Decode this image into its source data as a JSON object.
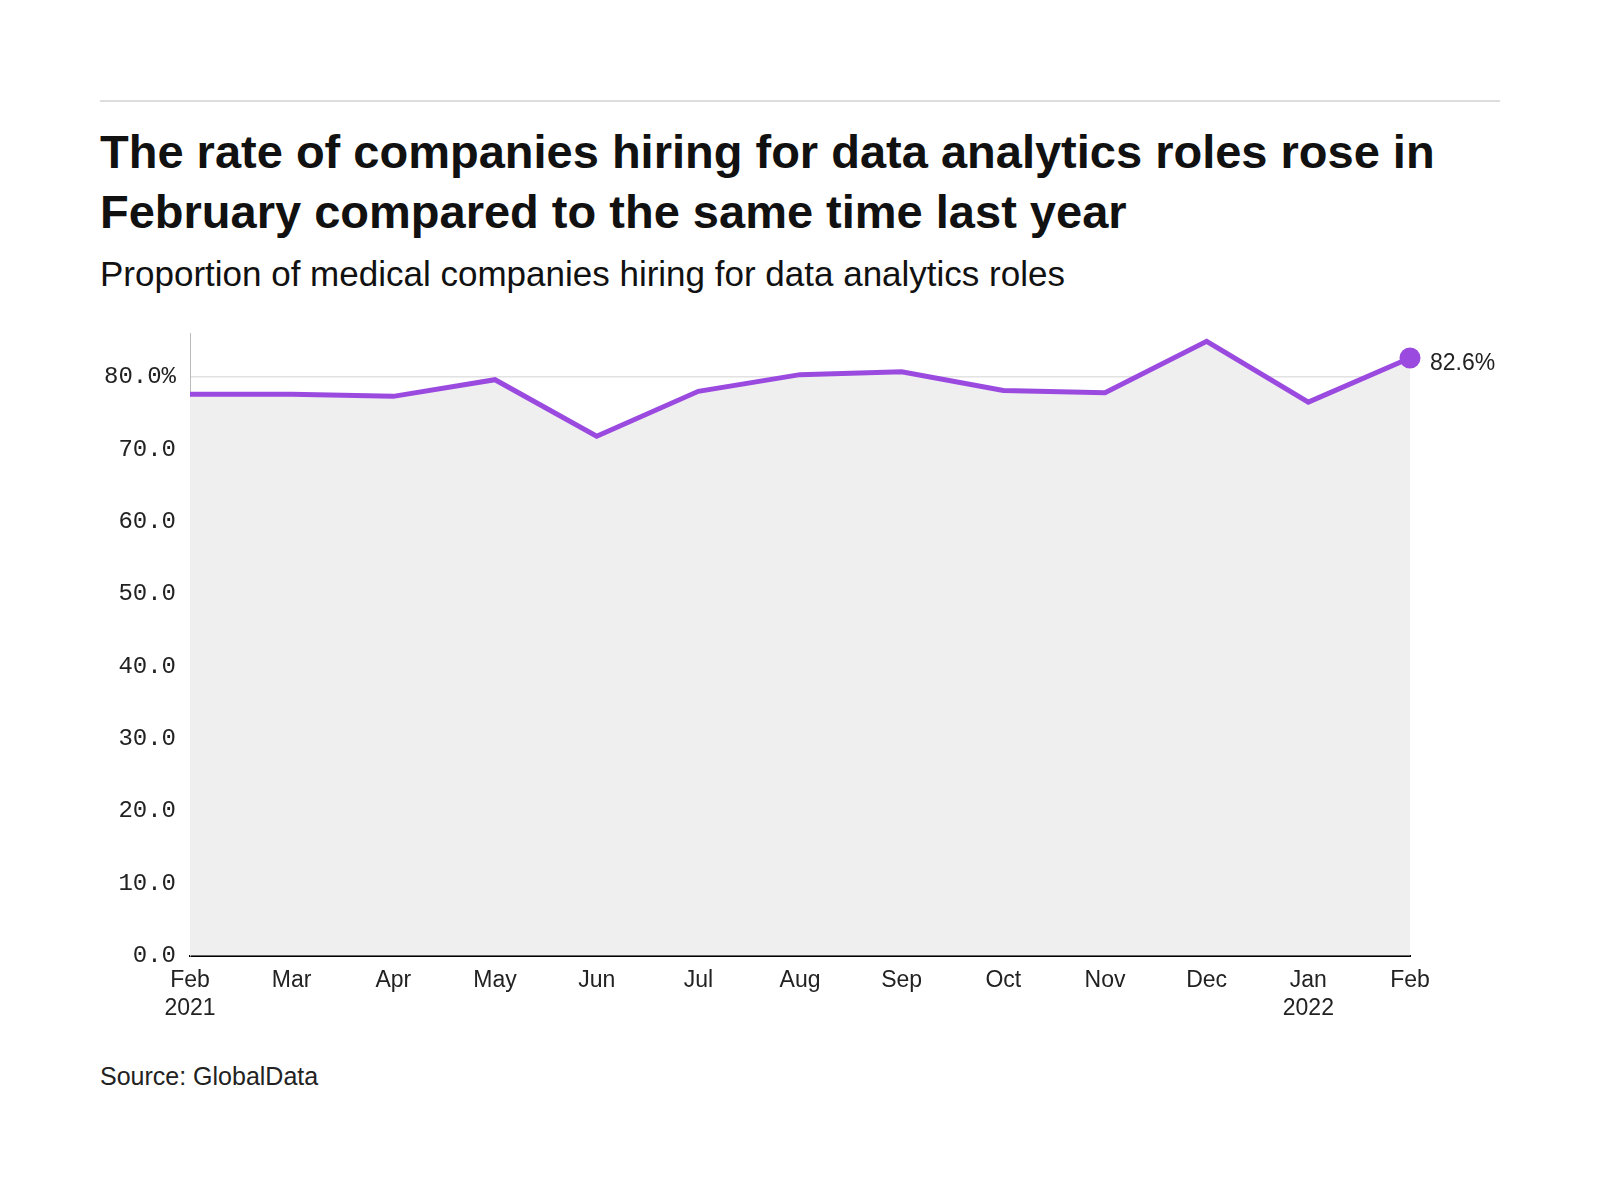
{
  "chart_data": {
    "type": "line",
    "title": "The rate of companies hiring for data analytics roles rose in February compared to the same time last year",
    "subtitle": "Proportion of medical companies hiring for data analytics roles",
    "source": "Source: GlobalData",
    "categories": [
      "Feb 2021",
      "Mar",
      "Apr",
      "May",
      "Jun",
      "Jul",
      "Aug",
      "Sep",
      "Oct",
      "Nov",
      "Dec",
      "Jan 2022",
      "Feb"
    ],
    "series": [
      {
        "name": "Proportion of medical companies hiring for data analytics roles",
        "color": "#9b4ae0",
        "values": [
          77.6,
          77.6,
          77.3,
          79.6,
          71.8,
          78.0,
          80.3,
          80.7,
          78.1,
          77.8,
          84.9,
          76.5,
          82.6
        ],
        "value_labels": [
          null,
          null,
          null,
          null,
          null,
          null,
          null,
          null,
          null,
          null,
          null,
          null,
          "82.6%"
        ]
      }
    ],
    "ylim": [
      0,
      86
    ],
    "yticks": [
      {
        "value": 0,
        "label": "0.0"
      },
      {
        "value": 10,
        "label": "10.0"
      },
      {
        "value": 20,
        "label": "20.0"
      },
      {
        "value": 30,
        "label": "30.0"
      },
      {
        "value": 40,
        "label": "40.0"
      },
      {
        "value": 50,
        "label": "50.0"
      },
      {
        "value": 60,
        "label": "60.0"
      },
      {
        "value": 70,
        "label": "70.0"
      },
      {
        "value": 80,
        "label": "80.0%"
      }
    ],
    "grid": true,
    "data_labels": true
  }
}
